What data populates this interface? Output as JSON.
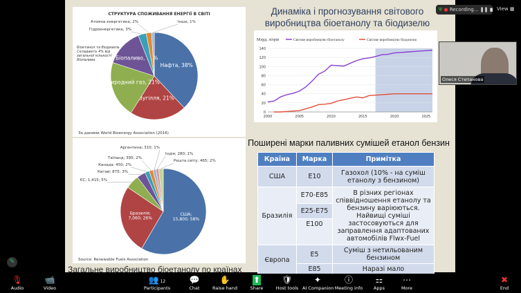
{
  "slide": {
    "title": "Динаміка і прогнозування світового виробництва біоетанолу та біодизелю",
    "table_title": "Поширені марки паливних сумішей етанол бензин",
    "bottom_title": "Загальне виробництво біоетанолу по країнах",
    "table": {
      "headers": [
        "Країна",
        "Марка",
        "Примітка"
      ],
      "usa": {
        "country": "США",
        "mark": "E10",
        "note": "Газохол (10% - на суміш етанолу з бензином)"
      },
      "brazil": {
        "country": "Бразилія",
        "marks": [
          "E70-E85",
          "E25-E75",
          "E100"
        ],
        "note": "В різних регіонах співвідношення етанолу та бензину варіюються. Найвищі суміші застосовуються для заправлення адаптованих автомобілів Flwx-Fuel"
      },
      "europe": {
        "country": "Європа",
        "marks": [
          "E5",
          "E85"
        ],
        "notes": [
          "Суміш з нетильованим бензином",
          "Наразі мало"
        ]
      }
    }
  },
  "chart_data": [
    {
      "type": "pie",
      "title": "СТРУКТУРА СПОЖИВАННЯ ЕНЕРГІЇ В СВІТІ",
      "source": "За даними World Bioenergy Association (2016)",
      "annotation": "Біоетанол та біодизель Складають 4% від загальної кількості біопалива",
      "slices": [
        {
          "label": "Нафта, 38%",
          "value": 38,
          "color": "#4a72a8",
          "inside": true
        },
        {
          "label": "Вугілля, 21%",
          "value": 21,
          "color": "#b04444",
          "inside": true
        },
        {
          "label": "Природний газ, 21%",
          "value": 21,
          "color": "#8fae4f",
          "inside": true
        },
        {
          "label": "Біопаливо, 14%",
          "value": 14,
          "color": "#6e5496",
          "inside": true
        },
        {
          "label": "Гідроенергетика, 3%",
          "value": 3,
          "color": "#3aa0b8"
        },
        {
          "label": "Атомна енергетика, 2%",
          "value": 2,
          "color": "#e08a34"
        },
        {
          "label": "Інше, 1%",
          "value": 1,
          "color": "#9bb4dc"
        }
      ]
    },
    {
      "type": "pie",
      "title": "",
      "source": "Source: Renewable Fuels Association",
      "slices": [
        {
          "label": "США; 15,800; 58%",
          "value": 15800,
          "color": "#4a72a8",
          "inside": true
        },
        {
          "label": "Бразилія; 7,060; 26%",
          "value": 7060,
          "color": "#b04444",
          "inside": true
        },
        {
          "label": "ЄС; 1,415; 5%",
          "value": 1415,
          "color": "#8fae4f"
        },
        {
          "label": "Китай; 875; 3%",
          "value": 875,
          "color": "#6e5496"
        },
        {
          "label": "Канада; 450; 2%",
          "value": 450,
          "color": "#3aa0b8"
        },
        {
          "label": "Таїланд; 395; 2%",
          "value": 395,
          "color": "#e08a34"
        },
        {
          "label": "Аргентина; 310; 1%",
          "value": 310,
          "color": "#9bb4dc"
        },
        {
          "label": "Індія; 280; 1%",
          "value": 280,
          "color": "#d99694"
        },
        {
          "label": "Решта світу; 465; 2%",
          "value": 465,
          "color": "#c3d69b"
        }
      ]
    },
    {
      "type": "line",
      "ylabel": "Млрд. літрів",
      "xlim": [
        2000,
        2026
      ],
      "ylim": [
        0,
        140
      ],
      "forecast_from": 2017,
      "xticks": [
        2000,
        2005,
        2010,
        2015,
        2020,
        2025
      ],
      "yticks": [
        0,
        20,
        40,
        60,
        80,
        100,
        120,
        140
      ],
      "series": [
        {
          "name": "Світове виробництво біоетанолу",
          "color": "#8a3fd1",
          "x": [
            2000,
            2001,
            2002,
            2003,
            2004,
            2005,
            2006,
            2007,
            2008,
            2009,
            2010,
            2011,
            2012,
            2013,
            2014,
            2015,
            2016,
            2017,
            2018,
            2019,
            2020,
            2021,
            2022,
            2023,
            2024,
            2025,
            2026
          ],
          "values": [
            22,
            24,
            33,
            38,
            41,
            46,
            55,
            68,
            83,
            90,
            103,
            102,
            101,
            107,
            113,
            117,
            119,
            122,
            126,
            127,
            130,
            131,
            132,
            133,
            134,
            135,
            136
          ]
        },
        {
          "name": "Світове виробництво біодизелю",
          "color": "#e0503a",
          "x": [
            2001,
            2002,
            2003,
            2004,
            2005,
            2006,
            2007,
            2008,
            2009,
            2010,
            2011,
            2012,
            2013,
            2014,
            2015,
            2016,
            2017,
            2018,
            2019,
            2020,
            2021,
            2022,
            2023,
            2024,
            2025,
            2026
          ],
          "values": [
            0,
            0,
            1,
            2,
            3,
            7,
            11,
            16,
            17,
            19,
            24,
            27,
            30,
            33,
            31,
            36,
            37,
            38,
            39,
            40,
            40,
            40,
            40,
            40,
            40,
            40
          ]
        }
      ]
    }
  ],
  "zoom": {
    "recording": "Recording...",
    "view": "View",
    "participant_name": "Олеся Степанова",
    "participants_count": "12",
    "toolbar": [
      "Audio",
      "Video",
      "Participants",
      "Chat",
      "Raise hand",
      "Share",
      "Host tools",
      "AI Companion",
      "Meeting info",
      "Apps",
      "More",
      "End"
    ]
  }
}
